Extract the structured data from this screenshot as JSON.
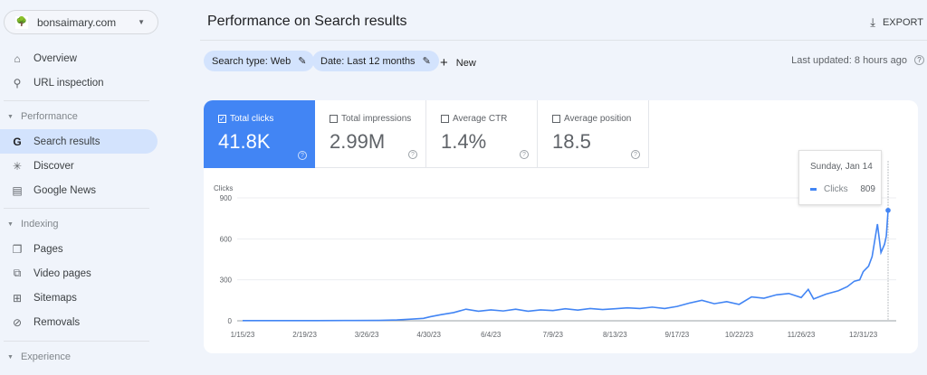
{
  "property": {
    "name": "bonsaimary.com"
  },
  "sidebar": {
    "top": [
      {
        "label": "Overview",
        "icon": "home-icon"
      },
      {
        "label": "URL inspection",
        "icon": "search-icon"
      }
    ],
    "sections": [
      {
        "label": "Performance",
        "items": [
          {
            "label": "Search results",
            "icon": "google-g-icon",
            "active": true
          },
          {
            "label": "Discover",
            "icon": "asterisk-icon"
          },
          {
            "label": "Google News",
            "icon": "news-icon"
          }
        ]
      },
      {
        "label": "Indexing",
        "items": [
          {
            "label": "Pages",
            "icon": "pages-icon"
          },
          {
            "label": "Video pages",
            "icon": "video-pages-icon"
          },
          {
            "label": "Sitemaps",
            "icon": "sitemap-icon"
          },
          {
            "label": "Removals",
            "icon": "eye-off-icon"
          }
        ]
      },
      {
        "label": "Experience",
        "items": []
      }
    ]
  },
  "header": {
    "title": "Performance on Search results",
    "export_label": "EXPORT"
  },
  "filters": {
    "search_type": "Search type: Web",
    "date": "Date: Last 12 months",
    "new_label": "New",
    "last_updated": "Last updated: 8 hours ago"
  },
  "metrics": [
    {
      "label": "Total clicks",
      "value": "41.8K",
      "checked": true
    },
    {
      "label": "Total impressions",
      "value": "2.99M",
      "checked": false
    },
    {
      "label": "Average CTR",
      "value": "1.4%",
      "checked": false
    },
    {
      "label": "Average position",
      "value": "18.5",
      "checked": false
    }
  ],
  "tooltip": {
    "date": "Sunday, Jan 14",
    "series": "Clicks",
    "value": "809"
  },
  "chart_data": {
    "type": "line",
    "ylabel": "Clicks",
    "ylim": [
      0,
      900
    ],
    "yticks": [
      0,
      300,
      600,
      900
    ],
    "xticks": [
      "1/15/23",
      "2/19/23",
      "3/26/23",
      "4/30/23",
      "6/4/23",
      "7/9/23",
      "8/13/23",
      "9/17/23",
      "10/22/23",
      "11/26/23",
      "12/31/23"
    ],
    "grid": true,
    "color": "#4285f4",
    "series": [
      {
        "name": "Clicks",
        "points": [
          [
            "2023-01-15",
            1
          ],
          [
            "2023-02-05",
            1
          ],
          [
            "2023-02-26",
            1
          ],
          [
            "2023-03-19",
            2
          ],
          [
            "2023-04-02",
            3
          ],
          [
            "2023-04-12",
            6
          ],
          [
            "2023-04-20",
            12
          ],
          [
            "2023-04-27",
            18
          ],
          [
            "2023-05-01",
            30
          ],
          [
            "2023-05-07",
            45
          ],
          [
            "2023-05-14",
            60
          ],
          [
            "2023-05-21",
            85
          ],
          [
            "2023-05-28",
            70
          ],
          [
            "2023-06-04",
            80
          ],
          [
            "2023-06-11",
            72
          ],
          [
            "2023-06-18",
            85
          ],
          [
            "2023-06-25",
            70
          ],
          [
            "2023-07-02",
            80
          ],
          [
            "2023-07-09",
            75
          ],
          [
            "2023-07-16",
            88
          ],
          [
            "2023-07-23",
            78
          ],
          [
            "2023-07-30",
            90
          ],
          [
            "2023-08-06",
            82
          ],
          [
            "2023-08-13",
            88
          ],
          [
            "2023-08-20",
            95
          ],
          [
            "2023-08-27",
            90
          ],
          [
            "2023-09-03",
            100
          ],
          [
            "2023-09-10",
            90
          ],
          [
            "2023-09-17",
            105
          ],
          [
            "2023-09-24",
            130
          ],
          [
            "2023-10-01",
            150
          ],
          [
            "2023-10-08",
            125
          ],
          [
            "2023-10-15",
            140
          ],
          [
            "2023-10-22",
            120
          ],
          [
            "2023-10-29",
            175
          ],
          [
            "2023-11-05",
            165
          ],
          [
            "2023-11-12",
            190
          ],
          [
            "2023-11-19",
            200
          ],
          [
            "2023-11-26",
            170
          ],
          [
            "2023-11-30",
            230
          ],
          [
            "2023-12-03",
            160
          ],
          [
            "2023-12-10",
            195
          ],
          [
            "2023-12-17",
            220
          ],
          [
            "2023-12-22",
            250
          ],
          [
            "2023-12-26",
            290
          ],
          [
            "2023-12-29",
            300
          ],
          [
            "2023-12-31",
            360
          ],
          [
            "2024-01-03",
            400
          ],
          [
            "2024-01-05",
            470
          ],
          [
            "2024-01-08",
            708
          ],
          [
            "2024-01-10",
            500
          ],
          [
            "2024-01-12",
            560
          ],
          [
            "2024-01-13",
            620
          ],
          [
            "2024-01-14",
            809
          ]
        ]
      }
    ]
  }
}
